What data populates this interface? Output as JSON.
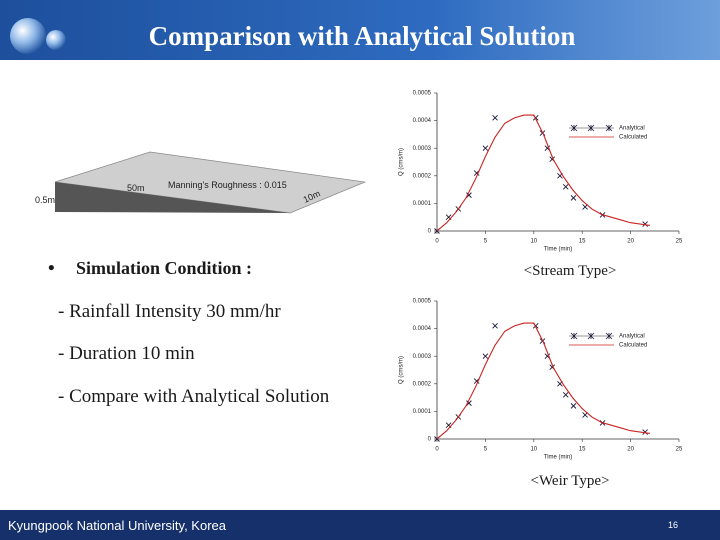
{
  "header": {
    "title": "Comparison with Analytical Solution"
  },
  "figure": {
    "labels": [
      "0.5m",
      "50m",
      "Manning's Roughness : 0.015",
      "10m"
    ]
  },
  "conditions": {
    "heading": "Simulation Condition :",
    "items": [
      "- Rainfall Intensity 30 mm/hr",
      "- Duration 10 min",
      "- Compare with Analytical Solution"
    ]
  },
  "chart_data": [
    {
      "type": "line",
      "caption": "<Stream Type>",
      "xlabel": "Time (min)",
      "ylabel": "Q (cms/m)",
      "xlim": [
        0,
        25
      ],
      "ylim": [
        0,
        0.0005
      ],
      "xticks": [
        0,
        5,
        10,
        15,
        20,
        25
      ],
      "yticks": [
        0,
        0.0001,
        0.0002,
        0.0003,
        0.0004,
        0.0005
      ],
      "legend": "upper right",
      "series": [
        {
          "name": "Analytical",
          "color": "#1a1a3a",
          "marker": "x",
          "x": [
            0,
            1.2,
            2.2,
            3.3,
            4.1,
            5,
            6,
            10.2,
            10.9,
            11.4,
            11.9,
            12.7,
            13.3,
            14.1,
            15.3,
            17.1,
            21.5
          ],
          "values": [
            0,
            5e-05,
            8e-05,
            0.00013,
            0.00021,
            0.0003,
            0.00041,
            0.00041,
            0.000355,
            0.0003,
            0.00026,
            0.0002,
            0.00016,
            0.00012,
            8.7e-05,
            5.8e-05,
            2.5e-05
          ]
        },
        {
          "name": "Calculated",
          "color": "#cc2222",
          "x": [
            0,
            1,
            2,
            3,
            4,
            5,
            6,
            7,
            8,
            9,
            10,
            11,
            12,
            13,
            14,
            15,
            16,
            17,
            18,
            19,
            20,
            21,
            22
          ],
          "values": [
            0,
            3e-05,
            7e-05,
            0.00012,
            0.00019,
            0.00027,
            0.00034,
            0.00039,
            0.00041,
            0.00042,
            0.00042,
            0.00035,
            0.00026,
            0.0002,
            0.00015,
            0.00011,
            8e-05,
            6e-05,
            5e-05,
            4e-05,
            3e-05,
            2.5e-05,
            2e-05
          ]
        }
      ]
    },
    {
      "type": "line",
      "caption": "<Weir Type>",
      "xlabel": "Time (min)",
      "ylabel": "Q (cms/m)",
      "xlim": [
        0,
        25
      ],
      "ylim": [
        0,
        0.0005
      ],
      "xticks": [
        0,
        5,
        10,
        15,
        20,
        25
      ],
      "yticks": [
        0,
        0.0001,
        0.0002,
        0.0003,
        0.0004,
        0.0005
      ],
      "legend": "upper right",
      "series": [
        {
          "name": "Analytical",
          "color": "#1a1a3a",
          "marker": "x",
          "x": [
            0,
            1.2,
            2.2,
            3.3,
            4.1,
            5,
            6,
            10.2,
            10.9,
            11.4,
            11.9,
            12.7,
            13.3,
            14.1,
            15.3,
            17.1,
            21.5
          ],
          "values": [
            0,
            5e-05,
            8e-05,
            0.00013,
            0.00021,
            0.0003,
            0.00041,
            0.00041,
            0.000355,
            0.0003,
            0.00026,
            0.0002,
            0.00016,
            0.00012,
            8.7e-05,
            5.8e-05,
            2.5e-05
          ]
        },
        {
          "name": "Calculated",
          "color": "#cc2222",
          "x": [
            0,
            1,
            2,
            3,
            4,
            5,
            6,
            7,
            8,
            9,
            10,
            11,
            12,
            13,
            14,
            15,
            16,
            17,
            18,
            19,
            20,
            21,
            22
          ],
          "values": [
            0,
            3e-05,
            7e-05,
            0.00012,
            0.00019,
            0.00027,
            0.00034,
            0.00039,
            0.00041,
            0.00042,
            0.00042,
            0.00035,
            0.00026,
            0.0002,
            0.00015,
            0.00011,
            8e-05,
            6e-05,
            5e-05,
            4e-05,
            3e-05,
            2.5e-05,
            2e-05
          ]
        }
      ]
    }
  ],
  "footer": {
    "institution": "Kyungpook National University, Korea",
    "page": "16"
  }
}
